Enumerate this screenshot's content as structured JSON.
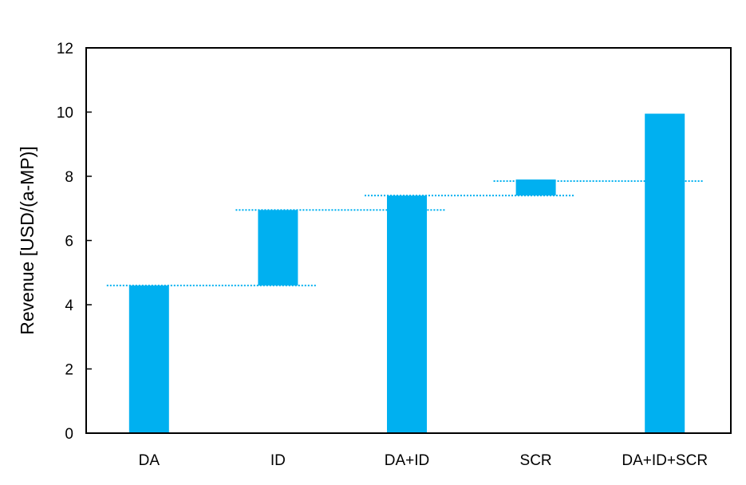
{
  "chart_data": {
    "type": "bar",
    "subtype": "waterfall",
    "title": "",
    "xlabel": "",
    "ylabel": "Revenue [USD/(a-MP)]",
    "ylim": [
      0,
      12
    ],
    "yticks": [
      0,
      2,
      4,
      6,
      8,
      10,
      12
    ],
    "categories": [
      "DA",
      "ID",
      "DA+ID",
      "SCR",
      "DA+ID+SCR"
    ],
    "bars": [
      {
        "category": "DA",
        "base": 0,
        "top": 4.6
      },
      {
        "category": "ID",
        "base": 4.6,
        "top": 6.95
      },
      {
        "category": "DA+ID",
        "base": 0,
        "top": 7.4
      },
      {
        "category": "SCR",
        "base": 7.4,
        "top": 7.9
      },
      {
        "category": "DA+ID+SCR",
        "base": 0,
        "top": 9.95
      }
    ],
    "connector_levels": [
      4.6,
      6.95,
      7.4,
      7.85
    ],
    "bar_color": "#00b0f0",
    "connector_color": "#00b0f0",
    "grid": false,
    "legend": "none"
  }
}
